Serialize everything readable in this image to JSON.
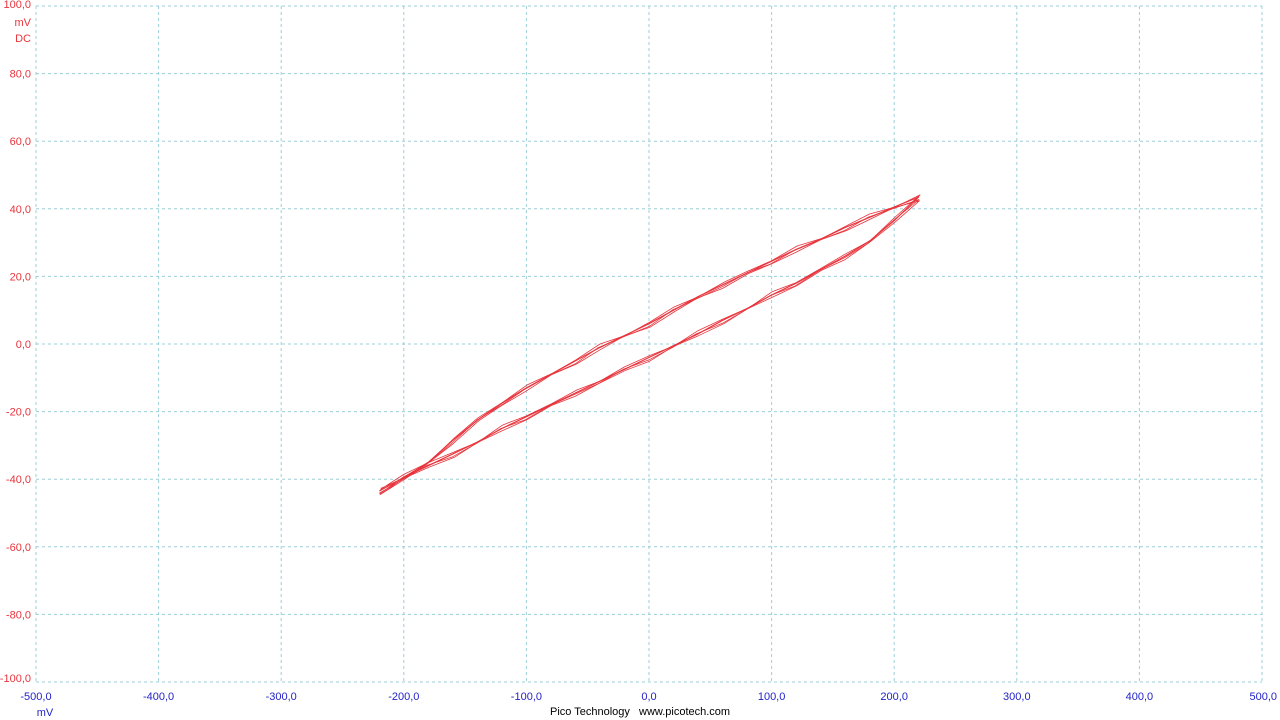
{
  "chart_data": {
    "type": "line",
    "xlim": [
      -500,
      500
    ],
    "ylim": [
      -100,
      100
    ],
    "x_ticks": [
      "-500,0",
      "-400,0",
      "-300,0",
      "-200,0",
      "-100,0",
      "0,0",
      "100,0",
      "200,0",
      "300,0",
      "400,0",
      "500,0"
    ],
    "y_ticks": [
      "100,0",
      "80,0",
      "60,0",
      "40,0",
      "20,0",
      "0,0",
      "-20,0",
      "-40,0",
      "-60,0",
      "-80,0",
      "-100,0"
    ],
    "x_unit": "mV",
    "y_unit": "mV",
    "y_coupling": "DC",
    "grid": true,
    "series": [
      {
        "color": "#e8343c",
        "points": [
          [
            -220,
            -43.5
          ],
          [
            -200,
            -39.5
          ],
          [
            -180,
            -36.0
          ],
          [
            -160,
            -32.5
          ],
          [
            -140,
            -29.0
          ],
          [
            -120,
            -25.0
          ],
          [
            -100,
            -21.5
          ],
          [
            -80,
            -18.0
          ],
          [
            -60,
            -14.5
          ],
          [
            -40,
            -11.0
          ],
          [
            -20,
            -7.5
          ],
          [
            0,
            -4.0
          ],
          [
            20,
            -0.5
          ],
          [
            40,
            3.0
          ],
          [
            60,
            7.0
          ],
          [
            80,
            10.5
          ],
          [
            100,
            14.5
          ],
          [
            120,
            18.0
          ],
          [
            140,
            22.0
          ],
          [
            160,
            26.0
          ],
          [
            180,
            30.5
          ],
          [
            200,
            36.5
          ],
          [
            220,
            43.5
          ],
          [
            200,
            40.5
          ],
          [
            180,
            37.5
          ],
          [
            160,
            34.5
          ],
          [
            140,
            31.0
          ],
          [
            120,
            28.0
          ],
          [
            100,
            24.5
          ],
          [
            80,
            21.0
          ],
          [
            60,
            17.5
          ],
          [
            40,
            14.0
          ],
          [
            20,
            10.0
          ],
          [
            0,
            6.0
          ],
          [
            -20,
            2.5
          ],
          [
            -40,
            -1.0
          ],
          [
            -60,
            -5.0
          ],
          [
            -80,
            -9.0
          ],
          [
            -100,
            -13.0
          ],
          [
            -120,
            -17.5
          ],
          [
            -140,
            -22.5
          ],
          [
            -160,
            -28.5
          ],
          [
            -180,
            -35.0
          ],
          [
            -200,
            -39.5
          ],
          [
            -220,
            -43.5
          ]
        ]
      }
    ]
  },
  "footer": {
    "brand": "Pico Technology",
    "url": "www.picotech.com"
  }
}
